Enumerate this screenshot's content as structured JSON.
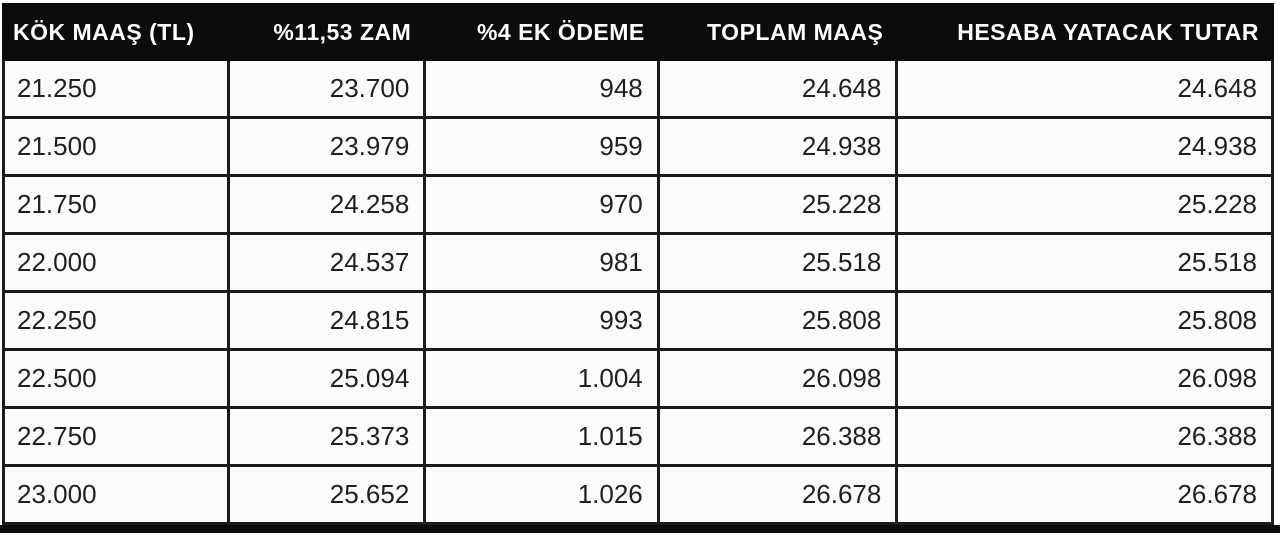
{
  "chart_data": {
    "type": "table",
    "title": "",
    "columns": [
      "KÖK MAAŞ (TL)",
      "%11,53 ZAM",
      "%4 EK ÖDEME",
      "TOPLAM MAAŞ",
      "HESABA YATACAK TUTAR"
    ],
    "rows": [
      [
        "21.250",
        "23.700",
        "948",
        "24.648",
        "24.648"
      ],
      [
        "21.500",
        "23.979",
        "959",
        "24.938",
        "24.938"
      ],
      [
        "21.750",
        "24.258",
        "970",
        "25.228",
        "25.228"
      ],
      [
        "22.000",
        "24.537",
        "981",
        "25.518",
        "25.518"
      ],
      [
        "22.250",
        "24.815",
        "993",
        "25.808",
        "25.808"
      ],
      [
        "22.500",
        "25.094",
        "1.004",
        "26.098",
        "26.098"
      ],
      [
        "22.750",
        "25.373",
        "1.015",
        "26.388",
        "26.388"
      ],
      [
        "23.000",
        "25.652",
        "1.026",
        "26.678",
        "26.678"
      ]
    ]
  },
  "table": {
    "headers": [
      "KÖK MAAŞ (TL)",
      "%11,53 ZAM",
      "%4 EK ÖDEME",
      "TOPLAM MAAŞ",
      "HESABA YATACAK TUTAR"
    ]
  },
  "colors": {
    "header_bg": "#0c0c0c",
    "header_text": "#ffffff",
    "cell_bg": "#fbfbfb",
    "cell_text": "#1f1f1f",
    "border": "#1b1b1b"
  }
}
